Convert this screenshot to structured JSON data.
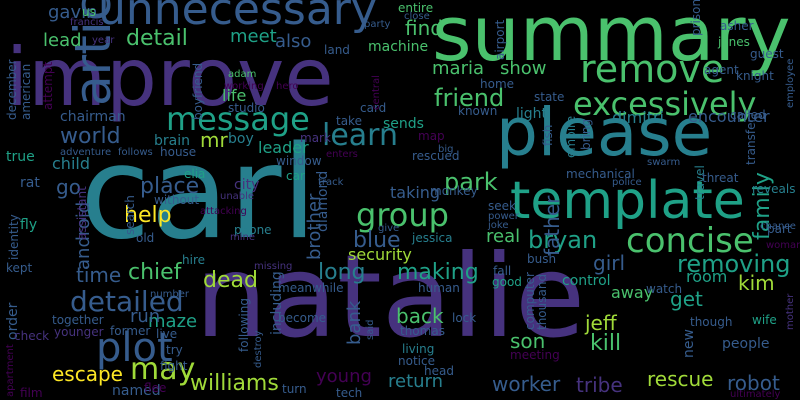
{
  "cloud": {
    "background": "#000000",
    "palette": {
      "purple": "#440154",
      "indigo": "#46327e",
      "blue": "#365c8d",
      "teal": "#277f8e",
      "green": "#1fa187",
      "lime": "#4ac16d",
      "yellowgreen": "#a0da39",
      "yellow": "#fde725"
    },
    "words": [
      {
        "id": "carl",
        "text": "carl"
      },
      {
        "id": "natalie",
        "text": "natalie"
      },
      {
        "id": "improve",
        "text": "improve"
      },
      {
        "id": "summary",
        "text": "summary"
      },
      {
        "id": "please",
        "text": "please"
      },
      {
        "id": "template",
        "text": "template"
      },
      {
        "id": "unnecessary",
        "text": "unnecessary"
      },
      {
        "id": "article",
        "text": "article"
      },
      {
        "id": "excessively",
        "text": "excessively"
      },
      {
        "id": "remove",
        "text": "remove"
      },
      {
        "id": "concise",
        "text": "concise"
      },
      {
        "id": "plot",
        "text": "plot"
      },
      {
        "id": "message",
        "text": "message"
      },
      {
        "id": "detailed",
        "text": "detailed"
      },
      {
        "id": "group",
        "text": "group"
      },
      {
        "id": "learn",
        "text": "learn"
      },
      {
        "id": "removing",
        "text": "removing"
      },
      {
        "id": "bryan",
        "text": "bryan"
      },
      {
        "id": "friend",
        "text": "friend"
      },
      {
        "id": "detail",
        "text": "detail"
      },
      {
        "id": "may",
        "text": "may"
      },
      {
        "id": "williams",
        "text": "williams"
      },
      {
        "id": "rescue",
        "text": "rescue"
      },
      {
        "id": "robot",
        "text": "robot"
      },
      {
        "id": "family",
        "text": "family"
      },
      {
        "id": "kill",
        "text": "kill"
      },
      {
        "id": "jeff",
        "text": "jeff"
      },
      {
        "id": "kim",
        "text": "kim"
      },
      {
        "id": "dead",
        "text": "dead"
      },
      {
        "id": "making",
        "text": "making"
      },
      {
        "id": "long",
        "text": "long"
      },
      {
        "id": "blue",
        "text": "blue"
      },
      {
        "id": "park",
        "text": "park"
      },
      {
        "id": "place",
        "text": "place"
      },
      {
        "id": "help",
        "text": "help"
      },
      {
        "id": "chief",
        "text": "chief"
      },
      {
        "id": "time",
        "text": "time"
      },
      {
        "id": "world",
        "text": "world"
      },
      {
        "id": "escape",
        "text": "escape"
      },
      {
        "id": "return",
        "text": "return"
      },
      {
        "id": "worker",
        "text": "worker"
      },
      {
        "id": "tribe",
        "text": "tribe"
      },
      {
        "id": "young",
        "text": "young"
      },
      {
        "id": "son",
        "text": "son"
      },
      {
        "id": "back",
        "text": "back"
      },
      {
        "id": "father",
        "text": "father"
      },
      {
        "id": "girl",
        "text": "girl"
      },
      {
        "id": "get",
        "text": "get"
      },
      {
        "id": "maria",
        "text": "maria"
      },
      {
        "id": "show",
        "text": "show"
      },
      {
        "id": "find",
        "text": "find"
      },
      {
        "id": "mr",
        "text": "mr"
      },
      {
        "id": "brother",
        "text": "brother"
      },
      {
        "id": "go",
        "text": "go"
      },
      {
        "id": "lead",
        "text": "lead"
      },
      {
        "id": "meet",
        "text": "meet"
      },
      {
        "id": "also",
        "text": "also"
      },
      {
        "id": "gavin",
        "text": "gavin"
      },
      {
        "id": "android",
        "text": "android"
      },
      {
        "id": "real",
        "text": "real"
      },
      {
        "id": "security",
        "text": "security"
      },
      {
        "id": "bank",
        "text": "bank"
      },
      {
        "id": "maze",
        "text": "maze"
      },
      {
        "id": "run",
        "text": "run"
      },
      {
        "id": "away",
        "text": "away"
      },
      {
        "id": "control",
        "text": "control"
      },
      {
        "id": "room",
        "text": "room"
      },
      {
        "id": "taking",
        "text": "taking"
      },
      {
        "id": "chairman",
        "text": "chairman"
      },
      {
        "id": "dimitri",
        "text": "dimitri"
      },
      {
        "id": "encounter",
        "text": "encounter"
      },
      {
        "id": "machine",
        "text": "machine"
      },
      {
        "id": "life",
        "text": "life"
      },
      {
        "id": "child",
        "text": "child"
      },
      {
        "id": "true",
        "text": "true"
      },
      {
        "id": "brain",
        "text": "brain"
      },
      {
        "id": "boy",
        "text": "boy"
      },
      {
        "id": "leader",
        "text": "leader"
      },
      {
        "id": "sends",
        "text": "sends"
      },
      {
        "id": "take",
        "text": "take"
      },
      {
        "id": "light",
        "text": "light"
      },
      {
        "id": "called",
        "text": "called"
      },
      {
        "id": "knight",
        "text": "knight"
      },
      {
        "id": "jones",
        "text": "jones"
      },
      {
        "id": "guest",
        "text": "guest"
      },
      {
        "id": "agent",
        "text": "agent"
      },
      {
        "id": "asher",
        "text": "asher"
      },
      {
        "id": "prisoner",
        "text": "prisoner"
      },
      {
        "id": "entire",
        "text": "entire"
      },
      {
        "id": "close",
        "text": "close"
      },
      {
        "id": "city",
        "text": "city"
      },
      {
        "id": "rescued",
        "text": "rescued"
      },
      {
        "id": "jessica",
        "text": "jessica"
      },
      {
        "id": "diamond",
        "text": "diamond"
      },
      {
        "id": "monkey",
        "text": "monkey"
      },
      {
        "id": "fly",
        "text": "fly"
      },
      {
        "id": "rat",
        "text": "rat"
      },
      {
        "id": "old",
        "text": "old"
      },
      {
        "id": "window",
        "text": "window"
      },
      {
        "id": "car",
        "text": "car"
      },
      {
        "id": "elia",
        "text": "elia"
      },
      {
        "id": "house",
        "text": "house"
      },
      {
        "id": "without",
        "text": "without"
      },
      {
        "id": "phone",
        "text": "phone"
      },
      {
        "id": "hire",
        "text": "hire"
      },
      {
        "id": "including",
        "text": "including"
      },
      {
        "id": "meanwhile",
        "text": "meanwhile"
      },
      {
        "id": "become",
        "text": "become"
      },
      {
        "id": "human",
        "text": "human"
      },
      {
        "id": "thomas",
        "text": "thomas"
      },
      {
        "id": "living",
        "text": "living"
      },
      {
        "id": "lock",
        "text": "lock"
      },
      {
        "id": "good",
        "text": "good"
      },
      {
        "id": "fall",
        "text": "fall"
      },
      {
        "id": "new",
        "text": "new"
      },
      {
        "id": "though",
        "text": "though"
      },
      {
        "id": "wife",
        "text": "wife"
      },
      {
        "id": "people",
        "text": "people"
      },
      {
        "id": "mother",
        "text": "mother"
      },
      {
        "id": "part",
        "text": "part"
      },
      {
        "id": "reveals",
        "text": "reveals"
      },
      {
        "id": "threat",
        "text": "threat"
      },
      {
        "id": "travel",
        "text": "travel"
      },
      {
        "id": "transfer",
        "text": "transfer"
      },
      {
        "id": "swarm",
        "text": "swarm"
      },
      {
        "id": "police",
        "text": "police"
      },
      {
        "id": "mechanical",
        "text": "mechanical"
      },
      {
        "id": "bring",
        "text": "bring"
      },
      {
        "id": "empire",
        "text": "empire"
      },
      {
        "id": "fish",
        "text": "fish"
      },
      {
        "id": "state",
        "text": "state"
      },
      {
        "id": "known",
        "text": "known"
      },
      {
        "id": "card",
        "text": "card"
      },
      {
        "id": "mark",
        "text": "mark"
      },
      {
        "id": "map",
        "text": "map"
      },
      {
        "id": "big",
        "text": "big"
      },
      {
        "id": "seek",
        "text": "seek"
      },
      {
        "id": "power",
        "text": "power"
      },
      {
        "id": "joke",
        "text": "joke"
      },
      {
        "id": "bush",
        "text": "bush"
      },
      {
        "id": "computer",
        "text": "computer"
      },
      {
        "id": "thousand",
        "text": "thousand"
      },
      {
        "id": "meeting",
        "text": "meeting"
      },
      {
        "id": "watch",
        "text": "watch"
      },
      {
        "id": "head",
        "text": "head"
      },
      {
        "id": "tech",
        "text": "tech"
      },
      {
        "id": "said",
        "text": "said"
      },
      {
        "id": "notice",
        "text": "notice"
      },
      {
        "id": "turn",
        "text": "turn"
      },
      {
        "id": "named",
        "text": "named"
      },
      {
        "id": "fight",
        "text": "fight"
      },
      {
        "id": "flee",
        "text": "flee"
      },
      {
        "id": "try",
        "text": "try"
      },
      {
        "id": "live",
        "text": "live"
      },
      {
        "id": "together",
        "text": "together"
      },
      {
        "id": "younger",
        "text": "younger"
      },
      {
        "id": "former",
        "text": "former"
      },
      {
        "id": "order",
        "text": "order"
      },
      {
        "id": "check",
        "text": "check"
      },
      {
        "id": "film",
        "text": "film"
      },
      {
        "id": "apartment",
        "text": "apartment"
      },
      {
        "id": "number",
        "text": "number"
      },
      {
        "id": "missing",
        "text": "missing"
      },
      {
        "id": "destroy",
        "text": "destroy"
      },
      {
        "id": "following",
        "text": "following"
      },
      {
        "id": "search",
        "text": "search"
      },
      {
        "id": "assistant",
        "text": "assistant"
      },
      {
        "id": "identity",
        "text": "identity"
      },
      {
        "id": "kept",
        "text": "kept"
      },
      {
        "id": "december",
        "text": "december"
      },
      {
        "id": "american",
        "text": "american"
      },
      {
        "id": "attempt",
        "text": "attempt"
      },
      {
        "id": "us",
        "text": "us"
      },
      {
        "id": "francis",
        "text": "francis"
      },
      {
        "id": "year",
        "text": "year"
      },
      {
        "id": "adam",
        "text": "adam"
      },
      {
        "id": "working",
        "text": "working"
      },
      {
        "id": "boyfriend",
        "text": "boyfriend"
      },
      {
        "id": "studio",
        "text": "studio"
      },
      {
        "id": "hero",
        "text": "hero"
      },
      {
        "id": "land",
        "text": "land"
      },
      {
        "id": "party",
        "text": "party"
      },
      {
        "id": "airport",
        "text": "airport"
      },
      {
        "id": "central",
        "text": "central"
      },
      {
        "id": "home",
        "text": "home"
      },
      {
        "id": "adventure",
        "text": "adventure"
      },
      {
        "id": "follows",
        "text": "follows"
      },
      {
        "id": "enters",
        "text": "enters"
      },
      {
        "id": "track",
        "text": "track"
      },
      {
        "id": "unable",
        "text": "unable"
      },
      {
        "id": "attacking",
        "text": "attacking"
      },
      {
        "id": "give",
        "text": "give"
      },
      {
        "id": "chance",
        "text": "chance"
      },
      {
        "id": "woman",
        "text": "woman"
      },
      {
        "id": "employee",
        "text": "employee"
      },
      {
        "id": "ultimately",
        "text": "ultimately"
      },
      {
        "id": "mine",
        "text": "mine"
      }
    ]
  }
}
